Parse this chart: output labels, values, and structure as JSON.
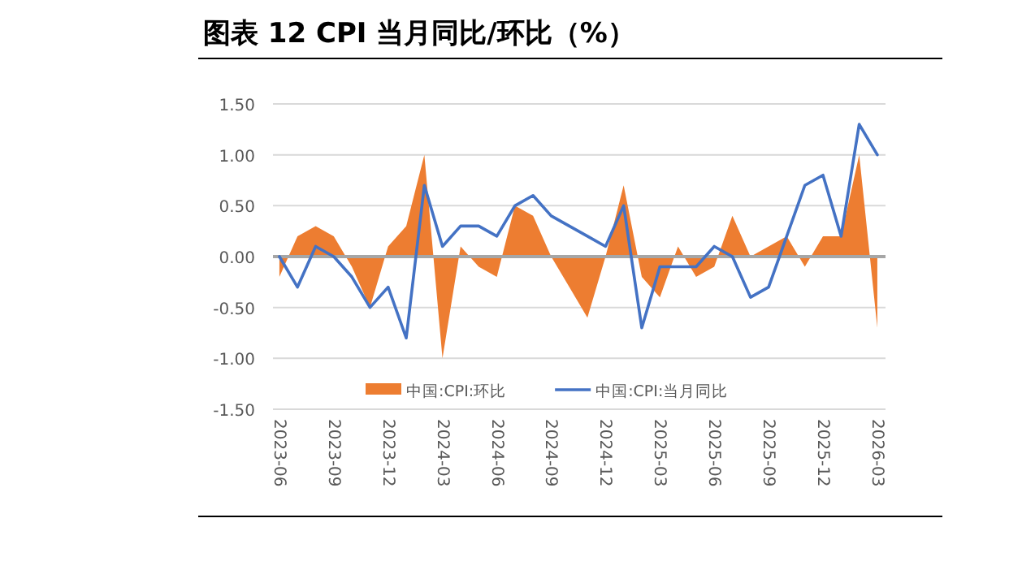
{
  "chart_data": {
    "type": "area",
    "title": "图表 12 CPI 当月同比/环比（%）",
    "x": [
      "2023-06",
      "2023-07",
      "2023-08",
      "2023-09",
      "2023-10",
      "2023-11",
      "2023-12",
      "2024-01",
      "2024-02",
      "2024-03",
      "2024-04",
      "2024-05",
      "2024-06",
      "2024-07",
      "2024-08",
      "2024-09",
      "2024-10",
      "2024-11",
      "2024-12",
      "2025-01",
      "2025-02",
      "2025-03",
      "2025-04",
      "2025-05",
      "2025-06",
      "2025-07",
      "2025-08",
      "2025-09",
      "2025-10",
      "2025-11",
      "2025-12",
      "2026-01",
      "2026-02",
      "2026-03"
    ],
    "series": [
      {
        "name": "中国:CPI:环比",
        "type": "area",
        "color": "#ed7d31",
        "values": [
          -0.2,
          0.2,
          0.3,
          0.2,
          -0.1,
          -0.5,
          0.1,
          0.3,
          1.0,
          -1.0,
          0.1,
          -0.1,
          -0.2,
          0.5,
          0.4,
          0.0,
          -0.3,
          -0.6,
          0.0,
          0.7,
          -0.2,
          -0.4,
          0.1,
          -0.2,
          -0.1,
          0.4,
          0.0,
          0.1,
          0.2,
          -0.1,
          0.2,
          0.2,
          1.0,
          -0.7
        ]
      },
      {
        "name": "中国:CPI:当月同比",
        "type": "line",
        "color": "#4472c4",
        "values": [
          0.0,
          -0.3,
          0.1,
          0.0,
          -0.2,
          -0.5,
          -0.3,
          -0.8,
          0.7,
          0.1,
          0.3,
          0.3,
          0.2,
          0.5,
          0.6,
          0.4,
          0.3,
          0.2,
          0.1,
          0.5,
          -0.7,
          -0.1,
          -0.1,
          -0.1,
          0.1,
          0.0,
          -0.4,
          -0.3,
          0.2,
          0.7,
          0.8,
          0.2,
          1.3,
          1.0
        ]
      }
    ],
    "xlim": [
      "2023-05-21",
      "2026-03-15"
    ],
    "xticks": [
      "2023-06",
      "2023-09",
      "2023-12",
      "2024-03",
      "2024-06",
      "2024-09",
      "2024-12",
      "2025-03",
      "2025-06",
      "2025-09",
      "2025-12",
      "2026-03"
    ],
    "ylim": [
      -1.5,
      1.5
    ],
    "yticks": [
      {
        "value": -1.5,
        "label": "-1.50"
      },
      {
        "value": -1.0,
        "label": "-1.00"
      },
      {
        "value": -0.5,
        "label": "-0.50"
      },
      {
        "value": 0,
        "label": "0.00"
      },
      {
        "value": 0.5,
        "label": "0.50"
      },
      {
        "value": 1.0,
        "label": "1.00"
      },
      {
        "value": 1.5,
        "label": "1.50"
      }
    ],
    "grid": "y",
    "legend": "bottom"
  }
}
